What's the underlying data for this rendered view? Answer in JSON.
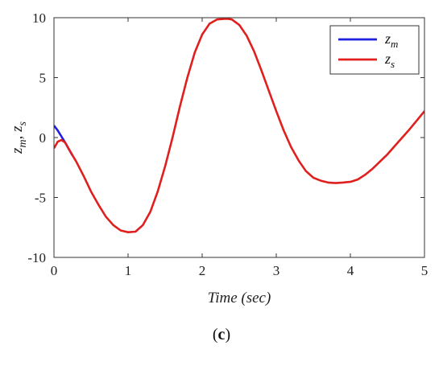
{
  "chart_data": {
    "type": "line",
    "xlabel": "Time (sec)",
    "ylabel": "z_m, z_s",
    "xlim": [
      0,
      5
    ],
    "ylim": [
      -10,
      10
    ],
    "xticks": [
      0,
      1,
      2,
      3,
      4,
      5
    ],
    "yticks": [
      -10,
      -5,
      0,
      5,
      10
    ],
    "grid": false,
    "legend_position": "top-right",
    "series": [
      {
        "name": "z_m",
        "color": "#1f1fe0",
        "x": [
          0,
          0.05,
          0.1,
          0.15,
          0.2,
          0.25
        ],
        "y": [
          1.0,
          0.6,
          0.1,
          -0.4,
          -0.95,
          -1.5
        ]
      },
      {
        "name": "z_s",
        "color": "#e01f1f",
        "x": [
          0,
          0.05,
          0.1,
          0.15,
          0.2,
          0.3,
          0.4,
          0.5,
          0.6,
          0.7,
          0.8,
          0.9,
          1.0,
          1.1,
          1.2,
          1.3,
          1.4,
          1.5,
          1.6,
          1.7,
          1.8,
          1.9,
          2.0,
          2.1,
          2.2,
          2.3,
          2.35,
          2.4,
          2.5,
          2.6,
          2.7,
          2.8,
          2.9,
          3.0,
          3.1,
          3.2,
          3.3,
          3.4,
          3.5,
          3.6,
          3.7,
          3.8,
          3.9,
          3.95,
          4.0,
          4.1,
          4.2,
          4.3,
          4.4,
          4.5,
          4.6,
          4.7,
          4.8,
          4.9,
          5.0
        ],
        "y": [
          -0.9,
          -0.35,
          -0.2,
          -0.4,
          -0.95,
          -2.0,
          -3.2,
          -4.5,
          -5.6,
          -6.6,
          -7.3,
          -7.75,
          -7.9,
          -7.85,
          -7.3,
          -6.2,
          -4.5,
          -2.4,
          0.0,
          2.6,
          5.0,
          7.1,
          8.6,
          9.5,
          9.85,
          9.9,
          9.9,
          9.85,
          9.4,
          8.5,
          7.2,
          5.6,
          3.9,
          2.2,
          0.6,
          -0.8,
          -1.9,
          -2.8,
          -3.35,
          -3.6,
          -3.75,
          -3.8,
          -3.75,
          -3.72,
          -3.7,
          -3.5,
          -3.1,
          -2.6,
          -2.0,
          -1.4,
          -0.7,
          0.0,
          0.7,
          1.45,
          2.2
        ]
      }
    ]
  },
  "panel_label": "c"
}
